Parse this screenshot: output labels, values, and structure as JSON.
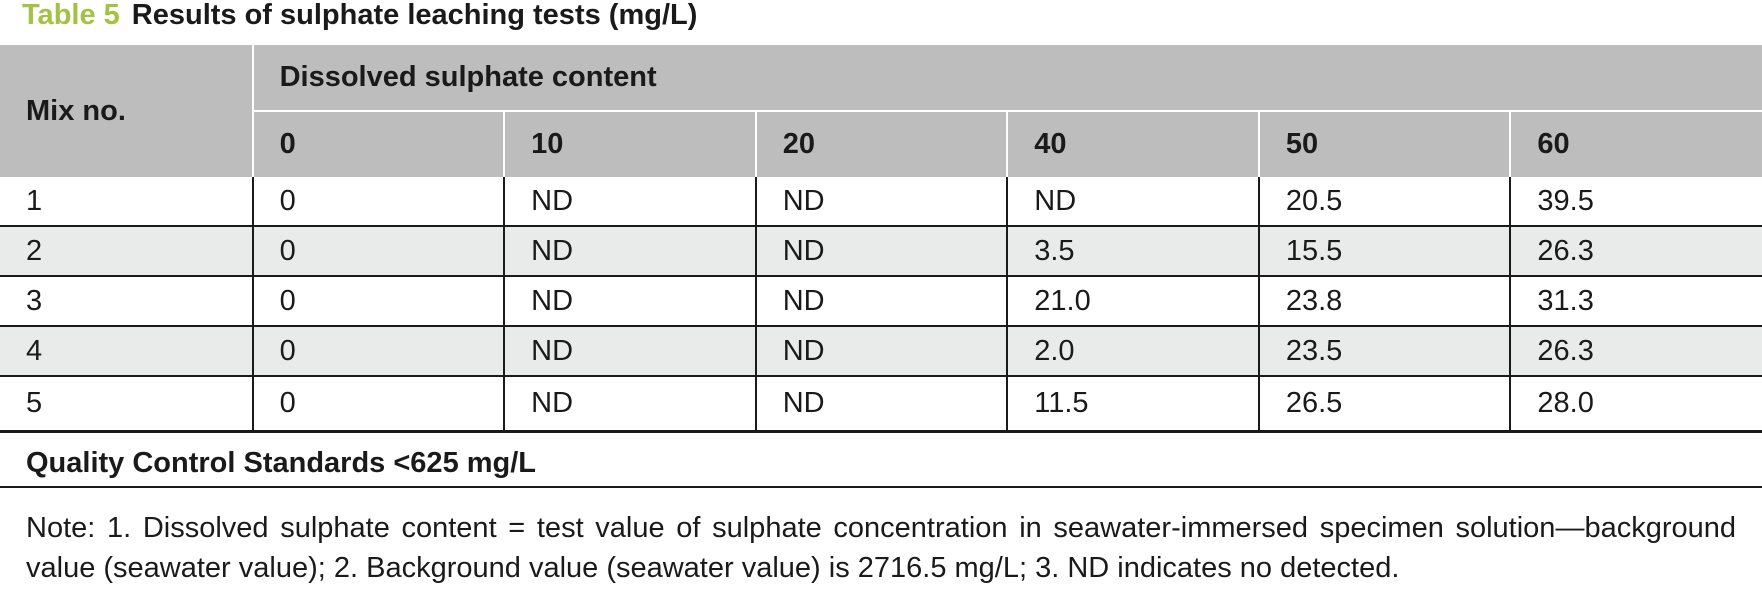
{
  "caption": {
    "label": "Table 5",
    "title": "Results of sulphate leaching tests (mg/L)",
    "label_color": "#a3c142"
  },
  "table": {
    "header": {
      "mix": "Mix no.",
      "group": "Dissolved sulphate content",
      "columns": [
        "0",
        "10",
        "20",
        "40",
        "50",
        "60"
      ]
    },
    "rows": [
      {
        "mix": "1",
        "values": [
          "0",
          "ND",
          "ND",
          "ND",
          "20.5",
          "39.5"
        ]
      },
      {
        "mix": "2",
        "values": [
          "0",
          "ND",
          "ND",
          "3.5",
          "15.5",
          "26.3"
        ]
      },
      {
        "mix": "3",
        "values": [
          "0",
          "ND",
          "ND",
          "21.0",
          "23.8",
          "31.3"
        ]
      },
      {
        "mix": "4",
        "values": [
          "0",
          "ND",
          "ND",
          "2.0",
          "23.5",
          "26.3"
        ]
      },
      {
        "mix": "5",
        "values": [
          "0",
          "ND",
          "ND",
          "11.5",
          "26.5",
          "28.0"
        ]
      }
    ],
    "header_bg": "#bdbdbd",
    "stripe_bg": "#e9ebeb"
  },
  "quality_control": "Quality Control Standards <625 mg/L",
  "note": "Note: 1. Dissolved sulphate content = test value of sulphate concentration in seawater-immersed specimen solution—background value (seawater value); 2. Background value (seawater value) is 2716.5 mg/L; 3. ND indicates no detected."
}
